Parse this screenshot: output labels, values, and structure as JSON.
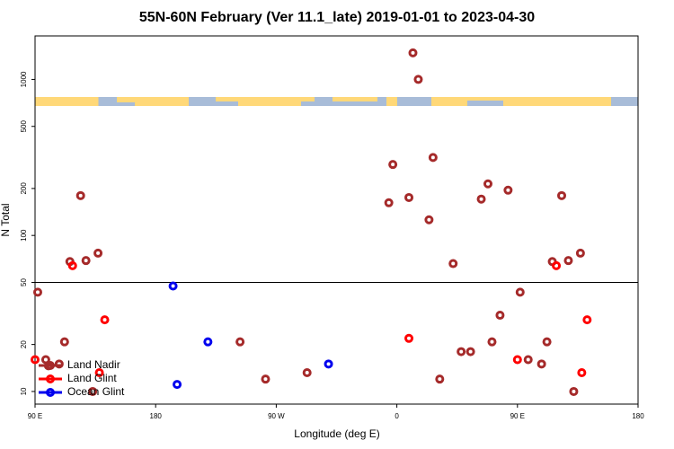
{
  "chart_data": {
    "type": "scatter",
    "title": "55N-60N February (Ver 11.1_late)   2019-01-01 to 2023-04-30",
    "x_label": "Longitude (deg E)",
    "y_label": "N Total",
    "xlim": [
      90,
      540
    ],
    "ylim": [
      8.3,
      1900
    ],
    "y_log": true,
    "hline": 50,
    "xticks": [
      {
        "value": 90,
        "label": "90 E"
      },
      180,
      {
        "value": 270,
        "label": "90 W"
      },
      {
        "value": 360,
        "label": "0"
      },
      {
        "value": 450,
        "label": "90 E"
      },
      {
        "value": 540,
        "label": "180"
      }
    ],
    "yticks": [
      10,
      20,
      50,
      100,
      200,
      500,
      1000
    ],
    "legend_position": "lower left",
    "series": [
      {
        "name": "Land Nadir",
        "color": "#a52a2a",
        "x": [
          92,
          98,
          100,
          108,
          112,
          116,
          124,
          128,
          137,
          133,
          243,
          262,
          293,
          354,
          357,
          369,
          372,
          376,
          384,
          387,
          392,
          402,
          408,
          415,
          423,
          428,
          431,
          437,
          443,
          452,
          458,
          468,
          472,
          476,
          483,
          488,
          492,
          497
        ],
        "values": [
          43.3,
          16,
          14.6,
          15,
          20.8,
          68,
          180,
          69,
          77,
          10,
          20.8,
          12,
          13.2,
          162,
          285,
          175,
          1480,
          1000,
          126,
          316,
          12,
          66,
          18,
          18,
          171,
          214,
          20.8,
          30.8,
          195,
          43.3,
          16,
          15,
          20.8,
          68,
          180,
          69,
          10,
          77
        ]
      },
      {
        "name": "Land Glint",
        "color": "#ff0000",
        "x": [
          90,
          118,
          138,
          142,
          369,
          450,
          479,
          498,
          502
        ],
        "values": [
          16,
          64,
          13.2,
          28.8,
          21.9,
          16,
          64,
          13.2,
          28.8
        ]
      },
      {
        "name": "Ocean Glint",
        "color": "#0000ee",
        "x": [
          193,
          196,
          219,
          309
        ],
        "values": [
          47.4,
          11.1,
          20.8,
          15
        ]
      }
    ]
  }
}
